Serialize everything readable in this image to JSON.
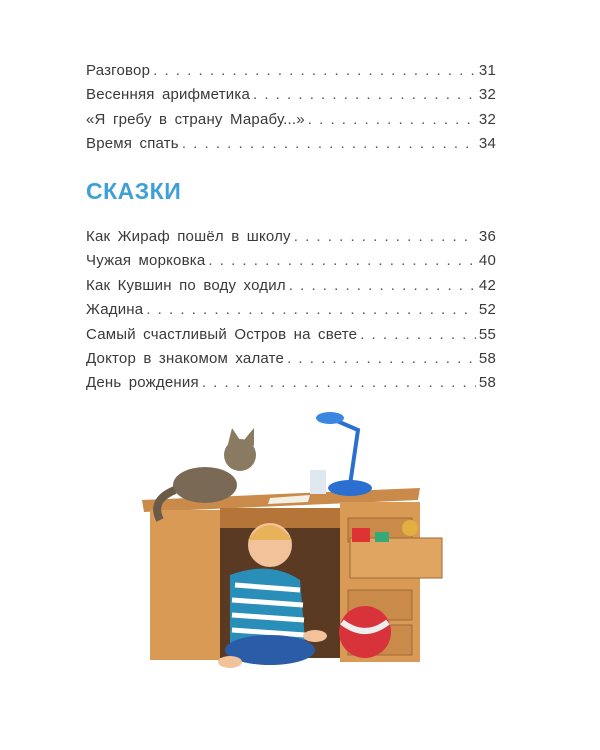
{
  "toc_part1": [
    {
      "title": "Разговор",
      "page": "31"
    },
    {
      "title": "Весенняя арифметика",
      "page": "32"
    },
    {
      "title": "«Я гребу в страну Марабу...»",
      "page": "32"
    },
    {
      "title": "Время спать",
      "page": "34"
    }
  ],
  "section": {
    "heading": "СКАЗКИ",
    "color": "#3fa0d8"
  },
  "toc_part2": [
    {
      "title": "Как Жираф пошёл в школу",
      "page": "36"
    },
    {
      "title": "Чужая морковка",
      "page": "40"
    },
    {
      "title": "Как Кувшин по воду ходил",
      "page": "42"
    },
    {
      "title": "Жадина",
      "page": "52"
    },
    {
      "title": "Самый счастливый Остров на свете",
      "page": "55"
    },
    {
      "title": "Доктор в знакомом халате",
      "page": "58"
    },
    {
      "title": "День рождения",
      "page": "58"
    }
  ]
}
